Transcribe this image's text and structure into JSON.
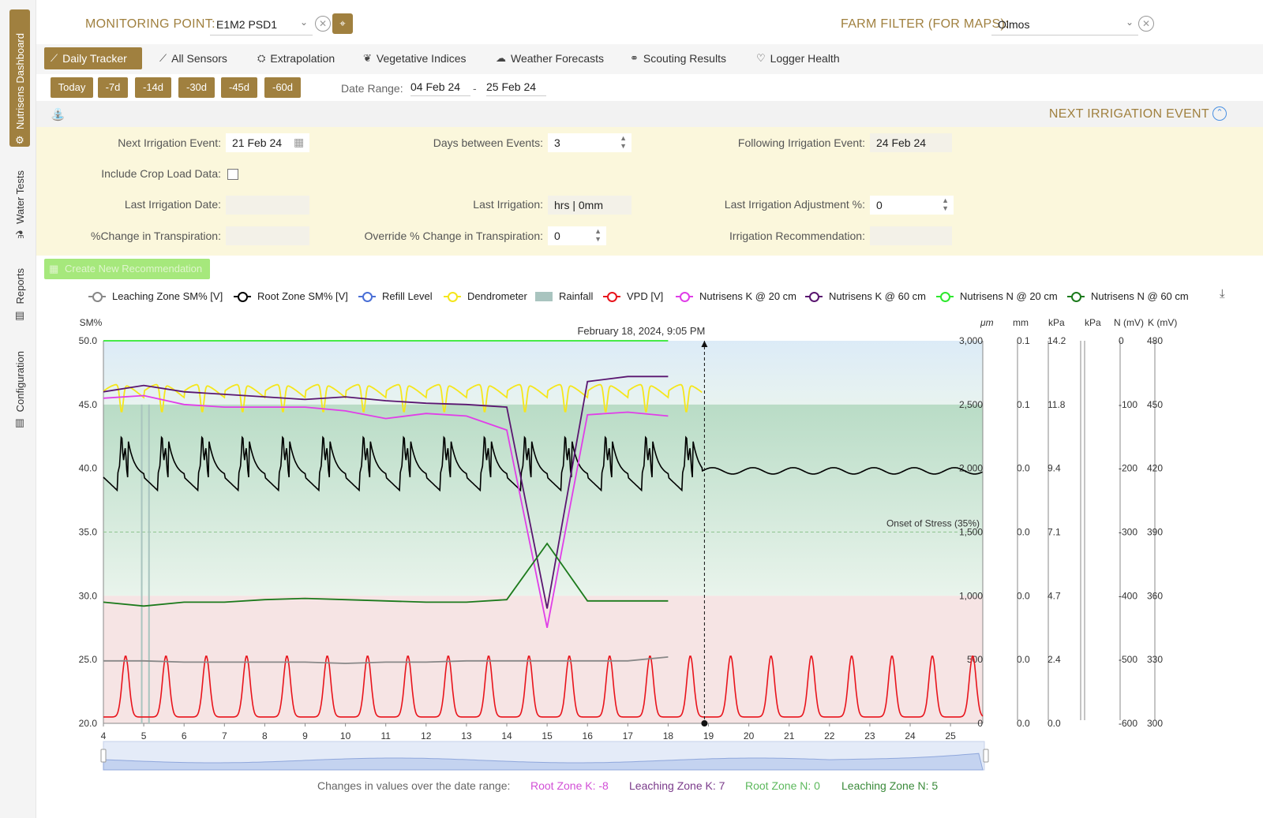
{
  "sidenav": {
    "items": [
      {
        "label": "Nutrisens Dashboard",
        "icon": "sensor-icon"
      },
      {
        "label": "Water Tests",
        "icon": "flask-icon"
      },
      {
        "label": "Reports",
        "icon": "report-icon"
      },
      {
        "label": "Configuration",
        "icon": "config-icon"
      }
    ]
  },
  "header": {
    "monitoring_label": "MONITORING POINT:",
    "monitoring_value": "E1M2 PSD1",
    "farm_label": "FARM FILTER (FOR MAPS):",
    "farm_value": "Olmos"
  },
  "tabs": [
    {
      "label": "Daily Tracker",
      "icon": "chart-line-icon"
    },
    {
      "label": "All Sensors",
      "icon": "chart-icon"
    },
    {
      "label": "Extrapolation",
      "icon": "faucet-icon"
    },
    {
      "label": "Vegetative Indices",
      "icon": "leaf-icon"
    },
    {
      "label": "Weather Forecasts",
      "icon": "cloud-icon"
    },
    {
      "label": "Scouting Results",
      "icon": "binoculars-icon"
    },
    {
      "label": "Logger Health",
      "icon": "heart-pulse-icon"
    }
  ],
  "range_buttons": [
    "Today",
    "-7d",
    "-14d",
    "-30d",
    "-45d",
    "-60d"
  ],
  "date_range": {
    "label": "Date Range:",
    "from": "04 Feb 24",
    "sep": "-",
    "to": "25 Feb 24"
  },
  "irrigation": {
    "title": "NEXT IRRIGATION EVENT",
    "next_event_label": "Next Irrigation Event:",
    "next_event_value": "21 Feb 24",
    "days_between_label": "Days between Events:",
    "days_between_value": "3",
    "following_label": "Following Irrigation Event:",
    "following_value": "24 Feb 24",
    "crop_load_label": "Include Crop Load Data:",
    "last_date_label": "Last Irrigation Date:",
    "last_irrigation_label": "Last Irrigation:",
    "last_irrigation_value": "hrs | 0mm",
    "last_adjust_label": "Last Irrigation Adjustment %:",
    "last_adjust_value": "0",
    "change_transp_label": "%Change in Transpiration:",
    "override_label": "Override % Change in Transpiration:",
    "override_value": "0",
    "recommendation_label": "Irrigation Recommendation:",
    "create_button": "Create New Recommendation"
  },
  "legend": [
    {
      "label": "Leaching Zone SM% [V]",
      "color": "#888888",
      "kind": "circle"
    },
    {
      "label": "Root Zone SM% [V]",
      "color": "#000000",
      "kind": "circle"
    },
    {
      "label": "Refill Level",
      "color": "#4a6fd6",
      "kind": "circle"
    },
    {
      "label": "Dendrometer",
      "color": "#f5e61b",
      "kind": "circle"
    },
    {
      "label": "Rainfall",
      "color": "#a9c4bf",
      "kind": "rect"
    },
    {
      "label": "VPD [V]",
      "color": "#e8141c",
      "kind": "circle"
    },
    {
      "label": "Nutrisens K @ 20 cm",
      "color": "#e03ee8",
      "kind": "circle"
    },
    {
      "label": "Nutrisens K @ 60 cm",
      "color": "#5a1670",
      "kind": "circle"
    },
    {
      "label": "Nutrisens N @ 20 cm",
      "color": "#2ee82e",
      "kind": "circle"
    },
    {
      "label": "Nutrisens N @ 60 cm",
      "color": "#1c7a1c",
      "kind": "circle"
    }
  ],
  "chart_data": {
    "type": "line",
    "ylabel": "SM%",
    "ylim": [
      20,
      50
    ],
    "y_ticks": [
      "50.0",
      "45.0",
      "40.0",
      "35.0",
      "30.0",
      "25.0",
      "20.0"
    ],
    "x": [
      4,
      5,
      6,
      7,
      8,
      9,
      10,
      11,
      12,
      13,
      14,
      15,
      16,
      17,
      18,
      19,
      20,
      21,
      22,
      23,
      24,
      25
    ],
    "xlim": [
      4,
      25.8
    ],
    "stress_label": "Onset of Stress (35%)",
    "stress_level": 35,
    "tooltip": "February 18, 2024, 9:05 PM",
    "cursor_x": 18.9,
    "zones": {
      "upper": 45,
      "stress": 30
    },
    "right_axes": [
      {
        "unit": "μm",
        "ticks": [
          "3,000",
          "2,500",
          "2,000",
          "1,500",
          "1,000",
          "500",
          "0"
        ]
      },
      {
        "unit": "mm",
        "ticks": [
          "0.1",
          "0.1",
          "0.0",
          "0.0",
          "0.0",
          "0.0",
          "0.0"
        ]
      },
      {
        "unit": "kPa",
        "ticks": [
          "14.2",
          "11.8",
          "9.4",
          "7.1",
          "4.7",
          "2.4",
          "0.0"
        ]
      },
      {
        "unit": "kPa",
        "ticks": []
      },
      {
        "unit": "N (mV)",
        "ticks": [
          "0",
          "-100",
          "-200",
          "-300",
          "-400",
          "-500",
          "-600"
        ]
      },
      {
        "unit": "K (mV)",
        "ticks": [
          "480",
          "450",
          "420",
          "390",
          "360",
          "330",
          "300"
        ]
      }
    ],
    "series": [
      {
        "name": "Nutrisens N @ 20 cm",
        "color": "#2ee82e",
        "x": [
          4,
          18
        ],
        "y": [
          50.0,
          50.0
        ]
      },
      {
        "name": "Nutrisens K @ 60 cm",
        "color": "#5a1670",
        "x": [
          4,
          5,
          6,
          7,
          8,
          9,
          10,
          11,
          12,
          13,
          14,
          15,
          16,
          17,
          18
        ],
        "y": [
          46.0,
          46.5,
          46.0,
          45.8,
          45.6,
          45.4,
          45.6,
          45.3,
          45.1,
          45.0,
          44.8,
          29.0,
          46.8,
          47.2,
          47.2
        ]
      },
      {
        "name": "Nutrisens K @ 20 cm",
        "color": "#e03ee8",
        "x": [
          4,
          5,
          6,
          7,
          8,
          9,
          10,
          11,
          12,
          13,
          14,
          15,
          16,
          17,
          18
        ],
        "y": [
          45.5,
          45.7,
          45.0,
          44.8,
          44.8,
          44.8,
          44.5,
          43.9,
          44.3,
          44.1,
          43.0,
          27.5,
          44.2,
          44.4,
          44.1
        ]
      },
      {
        "name": "Nutrisens N @ 60 cm",
        "color": "#1c7a1c",
        "x": [
          4,
          5,
          6,
          7,
          8,
          9,
          10,
          11,
          12,
          13,
          14,
          15,
          16,
          17,
          18
        ],
        "y": [
          29.5,
          29.2,
          29.5,
          29.5,
          29.7,
          29.8,
          29.7,
          29.6,
          29.5,
          29.5,
          29.7,
          34.1,
          29.6,
          29.6,
          29.6
        ]
      },
      {
        "name": "Leaching Zone SM% [V]",
        "color": "#888888",
        "x": [
          4,
          5,
          6,
          7,
          8,
          9,
          10,
          11,
          12,
          13,
          14,
          15,
          16,
          17,
          18
        ],
        "y": [
          24.9,
          24.9,
          24.8,
          24.8,
          24.8,
          24.8,
          24.7,
          24.8,
          24.8,
          24.9,
          24.9,
          24.9,
          24.9,
          24.9,
          25.2
        ]
      }
    ],
    "wave_series": [
      {
        "name": "Dendrometer",
        "color": "#f5e61b",
        "x_start": 4,
        "x_end": 18.85,
        "base": 45.8,
        "amp": 1.6,
        "trough": 43.6
      },
      {
        "name": "Root Zone SM% [V]",
        "color": "#000000",
        "x_start": 4,
        "x_end": 18.85,
        "base": 39.3,
        "amp": 3.5,
        "tail_base": 39.8,
        "tail_end": 25.8
      },
      {
        "name": "VPD [V]",
        "color": "#e8141c",
        "x_start": 4,
        "x_end": 25.8,
        "base": 20.5,
        "amp": 4.8
      }
    ],
    "rainfall": [
      {
        "x": 4.95,
        "y": 45.0
      },
      {
        "x": 5.13,
        "y": 45.0
      }
    ]
  },
  "changes": {
    "label": "Changes in values over the date range:",
    "root_k": "Root Zone K: -8",
    "leach_k": "Leaching Zone K: 7",
    "root_n": "Root Zone N: 0",
    "leach_n": "Leaching Zone N: 5",
    "colors": {
      "root_k": "#d24fd6",
      "leach_k": "#7a3a8a",
      "root_n": "#5cb85c",
      "leach_n": "#3a8a3a"
    }
  }
}
